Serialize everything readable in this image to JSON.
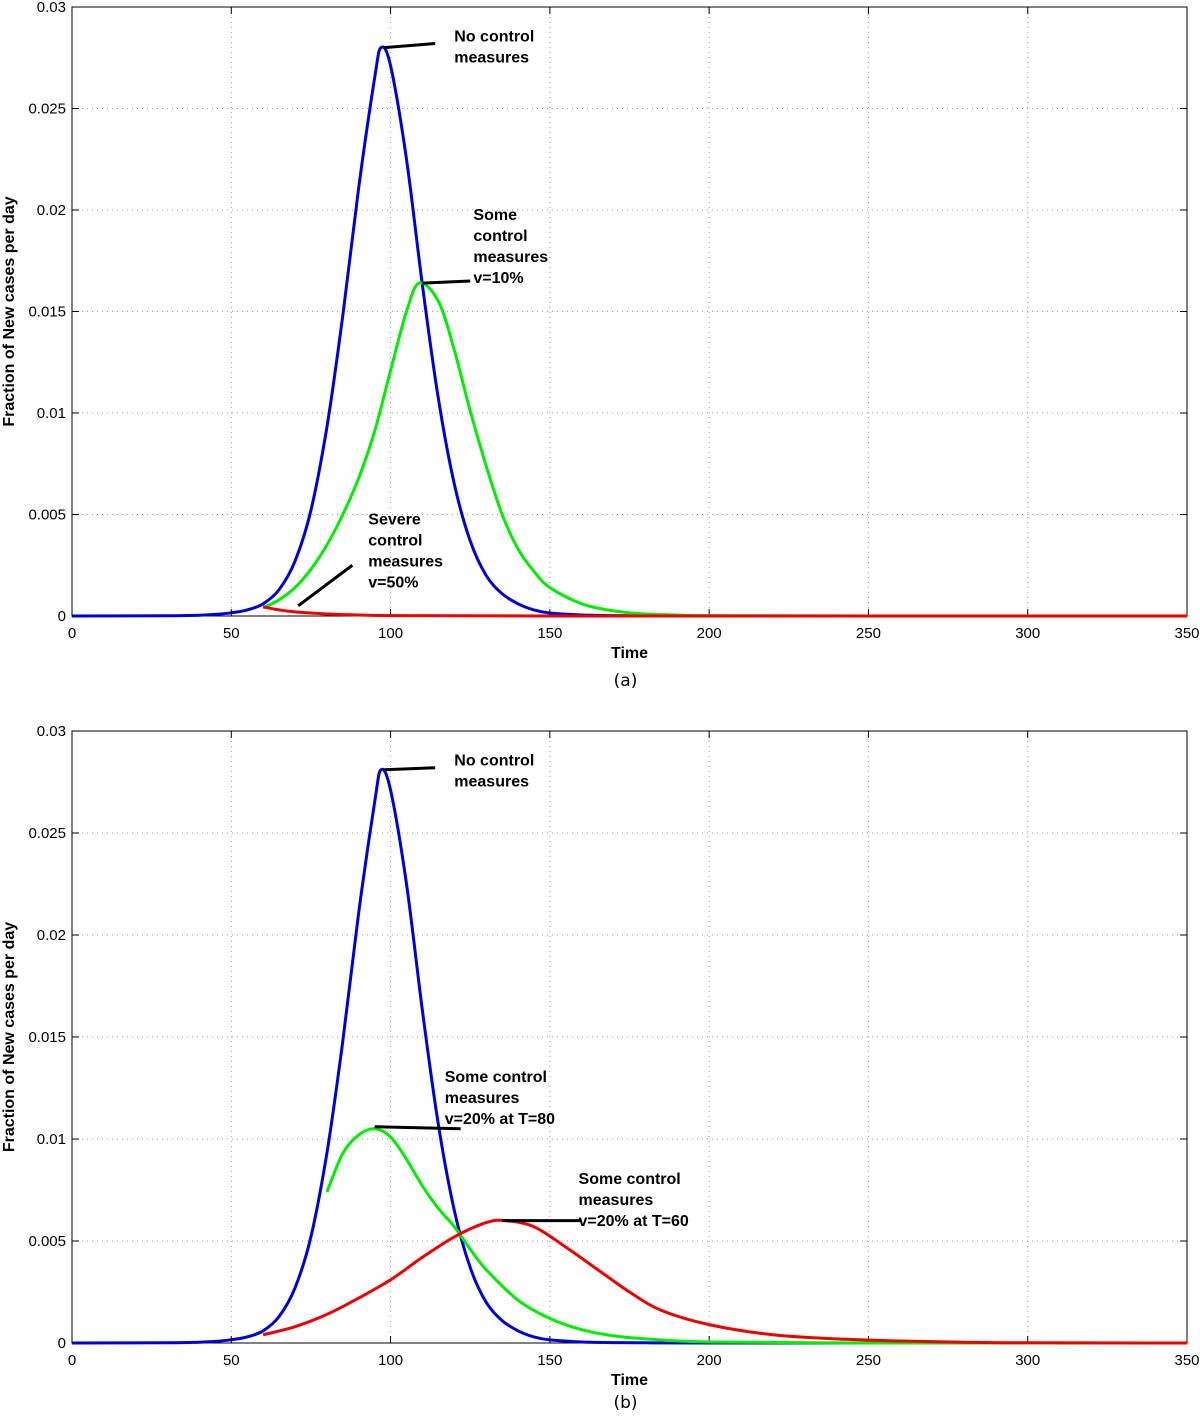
{
  "chart_data": [
    {
      "type": "line",
      "panel_label": "(a)",
      "xlabel": "Time",
      "ylabel": "Fraction of New cases per day",
      "xlim": [
        0,
        350
      ],
      "ylim": [
        0,
        0.03
      ],
      "xticks": [
        "0",
        "50",
        "100",
        "150",
        "200",
        "250",
        "300",
        "350"
      ],
      "yticks": [
        "0",
        "0.005",
        "0.01",
        "0.015",
        "0.02",
        "0.025",
        "0.03"
      ],
      "grid": true,
      "series": [
        {
          "color": "#0000dd",
          "x": [
            0,
            30,
            40,
            45,
            50,
            55,
            60,
            65,
            70,
            75,
            80,
            85,
            90,
            95,
            97,
            100,
            105,
            110,
            115,
            120,
            125,
            130,
            135,
            140,
            145,
            150,
            160,
            170,
            180,
            200,
            250,
            300,
            350
          ],
          "y": [
            0,
            1e-05,
            4e-05,
            8e-05,
            0.00016,
            0.0003,
            0.0006,
            0.0013,
            0.0027,
            0.0052,
            0.0093,
            0.0148,
            0.0211,
            0.0265,
            0.028,
            0.0271,
            0.0225,
            0.0163,
            0.0107,
            0.0065,
            0.0037,
            0.002,
            0.0011,
            0.0006,
            0.0003,
            0.00015,
            5e-05,
            2e-05,
            1e-05,
            0,
            0,
            0,
            0
          ]
        },
        {
          "color": "#00ee00",
          "x": [
            60,
            65,
            70,
            75,
            80,
            85,
            90,
            95,
            100,
            105,
            109,
            115,
            120,
            125,
            130,
            135,
            140,
            145,
            150,
            160,
            170,
            180,
            190,
            200,
            250,
            300,
            350
          ],
          "y": [
            0.0004,
            0.0008,
            0.0014,
            0.0023,
            0.0035,
            0.005,
            0.0068,
            0.0091,
            0.0121,
            0.015,
            0.0164,
            0.0155,
            0.0131,
            0.0101,
            0.0074,
            0.005,
            0.0033,
            0.0022,
            0.0014,
            0.0006,
            0.00025,
            0.0001,
            5e-05,
            2e-05,
            0,
            0,
            0
          ]
        },
        {
          "color": "#ee0000",
          "x": [
            60,
            65,
            70,
            80,
            90,
            100,
            120,
            150,
            200,
            250,
            300,
            350
          ],
          "y": [
            0.00045,
            0.0003,
            0.0002,
            0.0001,
            5e-05,
            2e-05,
            1e-05,
            0,
            0,
            0,
            0,
            0
          ]
        }
      ],
      "annotations": [
        {
          "lines": [
            "No control",
            "measures"
          ],
          "x": 120,
          "y": 0.0283,
          "anchor_x": 98,
          "anchor_y": 0.028,
          "end_x": 114,
          "end_y": 0.0282
        },
        {
          "lines": [
            "Some",
            "control",
            "measures",
            "v=10%"
          ],
          "x": 126,
          "y": 0.0195,
          "anchor_x": 110,
          "anchor_y": 0.0164,
          "end_x": 125,
          "end_y": 0.0165
        },
        {
          "lines": [
            "Severe",
            "control",
            "measures",
            "v=50%"
          ],
          "x": 93,
          "y": 0.0045,
          "anchor_x": 71,
          "anchor_y": 0.0005,
          "end_x": 88,
          "end_y": 0.0025
        }
      ]
    },
    {
      "type": "line",
      "panel_label": "(b)",
      "xlabel": "Time",
      "ylabel": "Fraction of New cases per day",
      "xlim": [
        0,
        350
      ],
      "ylim": [
        0,
        0.03
      ],
      "xticks": [
        "0",
        "50",
        "100",
        "150",
        "200",
        "250",
        "300",
        "350"
      ],
      "yticks": [
        "0",
        "0.005",
        "0.01",
        "0.015",
        "0.02",
        "0.025",
        "0.03"
      ],
      "grid": true,
      "series": [
        {
          "color": "#0000dd",
          "x": [
            0,
            30,
            40,
            45,
            50,
            55,
            60,
            65,
            70,
            75,
            80,
            85,
            90,
            95,
            97,
            100,
            105,
            110,
            115,
            120,
            125,
            130,
            135,
            140,
            145,
            150,
            160,
            170,
            180,
            200,
            250,
            300,
            350
          ],
          "y": [
            0,
            1e-05,
            4e-05,
            8e-05,
            0.00016,
            0.0003,
            0.0006,
            0.0013,
            0.0027,
            0.0052,
            0.0093,
            0.0148,
            0.0211,
            0.0265,
            0.0281,
            0.0271,
            0.0225,
            0.0163,
            0.0107,
            0.0065,
            0.0037,
            0.002,
            0.0011,
            0.0006,
            0.0003,
            0.00015,
            5e-05,
            2e-05,
            1e-05,
            0,
            0,
            0,
            0
          ]
        },
        {
          "color": "#00ee00",
          "x": [
            80,
            85,
            90,
            95,
            100,
            105,
            110,
            115,
            120,
            125,
            130,
            140,
            150,
            160,
            170,
            180,
            200,
            250,
            300,
            350
          ],
          "y": [
            0.0074,
            0.0093,
            0.0102,
            0.0105,
            0.0101,
            0.009,
            0.0077,
            0.0066,
            0.0057,
            0.0046,
            0.0036,
            0.0021,
            0.0012,
            0.00065,
            0.00035,
            0.0002,
            5e-05,
            0,
            0,
            0
          ]
        },
        {
          "color": "#ee0000",
          "x": [
            60,
            70,
            80,
            90,
            100,
            110,
            120,
            130,
            136,
            145,
            155,
            165,
            175,
            185,
            200,
            220,
            240,
            260,
            280,
            300,
            350
          ],
          "y": [
            0.0004,
            0.0008,
            0.0014,
            0.0022,
            0.0031,
            0.0042,
            0.0052,
            0.0059,
            0.006,
            0.0057,
            0.0047,
            0.0036,
            0.0025,
            0.0016,
            0.0009,
            0.0004,
            0.0002,
            0.0001,
            4e-05,
            1e-05,
            0
          ]
        }
      ],
      "annotations": [
        {
          "lines": [
            "No control",
            "measures"
          ],
          "x": 120,
          "y": 0.0283,
          "anchor_x": 98,
          "anchor_y": 0.0281,
          "end_x": 114,
          "end_y": 0.0282
        },
        {
          "lines": [
            "Some control",
            "measures",
            "v=20% at T=80"
          ],
          "x": 117,
          "y": 0.0128,
          "anchor_x": 95,
          "anchor_y": 0.0106,
          "end_x": 122,
          "end_y": 0.0105
        },
        {
          "lines": [
            "Some control",
            "measures",
            "v=20% at T=60"
          ],
          "x": 159,
          "y": 0.0078,
          "anchor_x": 135,
          "anchor_y": 0.006,
          "end_x": 160,
          "end_y": 0.006
        }
      ]
    }
  ]
}
